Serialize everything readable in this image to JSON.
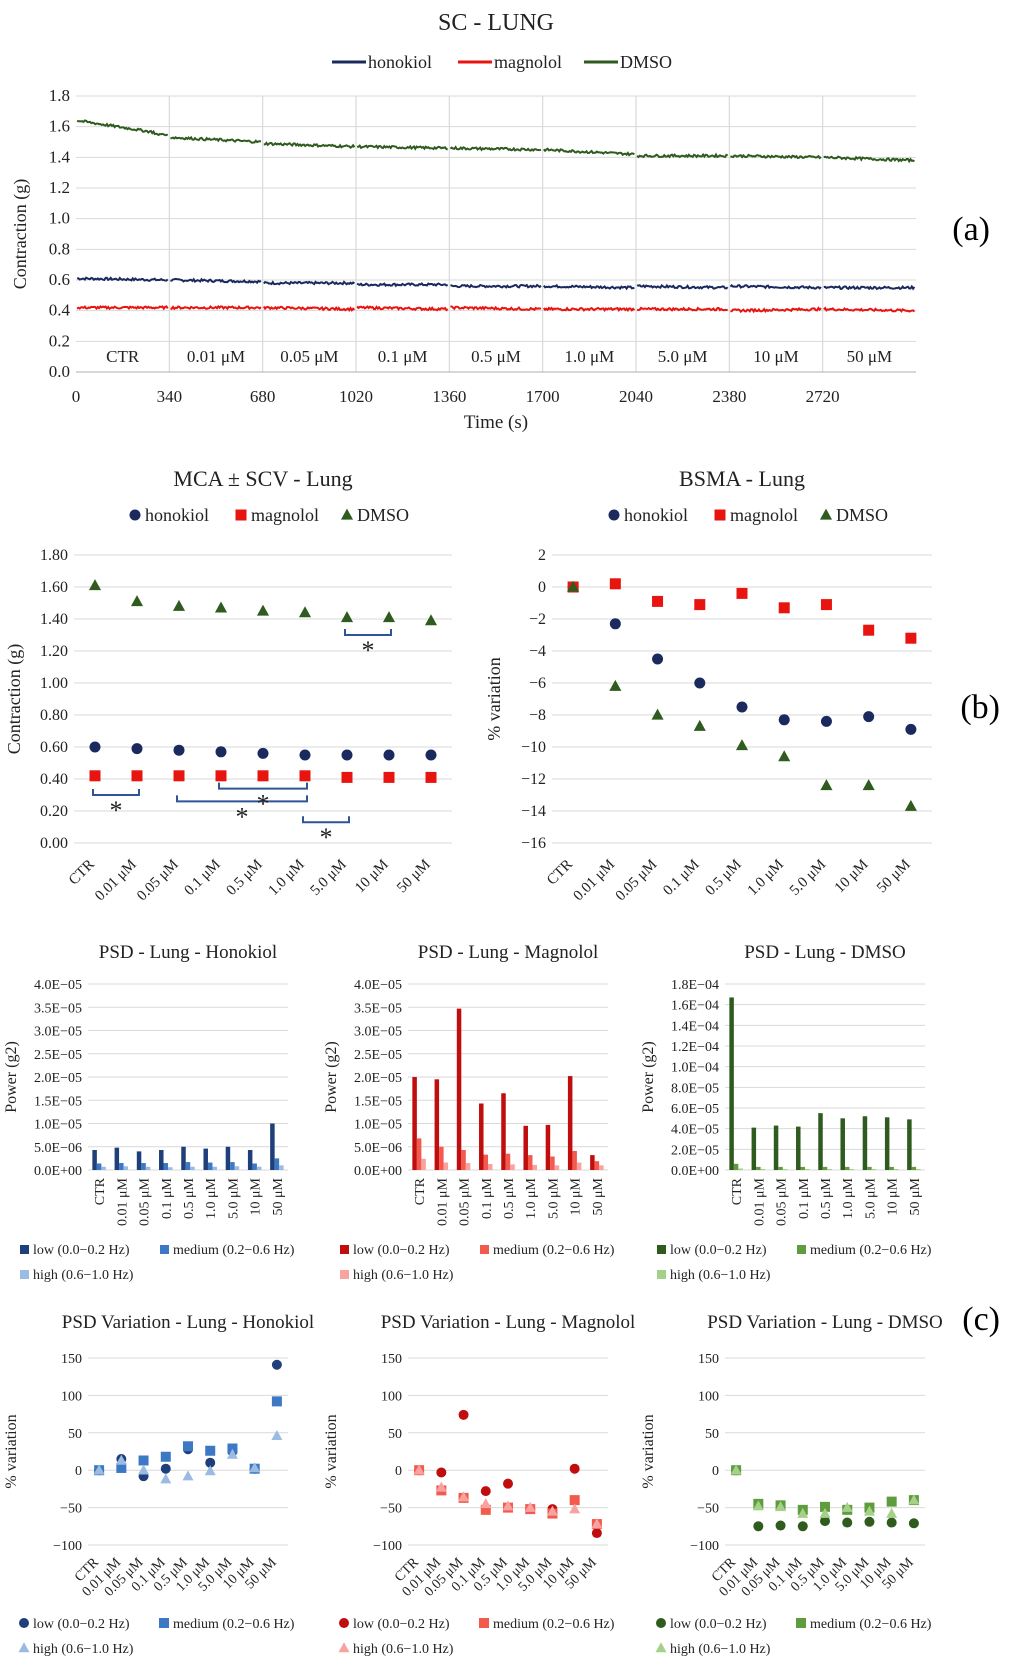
{
  "colors": {
    "honokiol": "#1b2a5e",
    "magnolol": "#e8140f",
    "dmso": "#2f5b1f",
    "hon_low": "#1f3f7a",
    "hon_med": "#3d78c4",
    "hon_high": "#9bbbe3",
    "mag_low": "#c00d0d",
    "mag_med": "#f25a4e",
    "mag_high": "#f8a3a0",
    "dmso_low": "#2f5b1f",
    "dmso_med": "#5f9c3e",
    "dmso_high": "#a5d08a"
  },
  "panel_labels": {
    "a": "(a)",
    "b": "(b)",
    "c": "(c)"
  },
  "chart_data": [
    {
      "id": "sc_lung",
      "type": "line",
      "title": "SC - LUNG",
      "xlabel": "Time (s)",
      "ylabel": "Contraction (g)",
      "xlim": [
        0,
        3060
      ],
      "ylim": [
        0,
        1.8
      ],
      "x_ticks": [
        "0",
        "340",
        "680",
        "1020",
        "1360",
        "1700",
        "2040",
        "2380",
        "2720"
      ],
      "y_ticks": [
        "0.0",
        "0.2",
        "0.4",
        "0.6",
        "0.8",
        "1.0",
        "1.2",
        "1.4",
        "1.6",
        "1.8"
      ],
      "segments": [
        "CTR",
        "0.01 μM",
        "0.05 μM",
        "0.1 μM",
        "0.5 μM",
        "1.0 μM",
        "5.0 μM",
        "10 μM",
        "50 μM"
      ],
      "segment_edges": [
        0,
        340,
        680,
        1020,
        1360,
        1700,
        2040,
        2380,
        2720,
        3060
      ],
      "legend": "top",
      "series": [
        {
          "name": "honokiol",
          "segment_levels": [
            [
              0.61,
              0.6
            ],
            [
              0.6,
              0.59
            ],
            [
              0.58,
              0.58
            ],
            [
              0.57,
              0.57
            ],
            [
              0.56,
              0.56
            ],
            [
              0.56,
              0.55
            ],
            [
              0.56,
              0.55
            ],
            [
              0.56,
              0.55
            ],
            [
              0.55,
              0.55
            ]
          ]
        },
        {
          "name": "magnolol",
          "segment_levels": [
            [
              0.42,
              0.42
            ],
            [
              0.42,
              0.42
            ],
            [
              0.42,
              0.41
            ],
            [
              0.42,
              0.41
            ],
            [
              0.42,
              0.41
            ],
            [
              0.41,
              0.41
            ],
            [
              0.41,
              0.41
            ],
            [
              0.4,
              0.41
            ],
            [
              0.41,
              0.4
            ]
          ]
        },
        {
          "name": "DMSO",
          "segment_levels": [
            [
              1.64,
              1.55
            ],
            [
              1.53,
              1.5
            ],
            [
              1.49,
              1.47
            ],
            [
              1.47,
              1.46
            ],
            [
              1.46,
              1.45
            ],
            [
              1.45,
              1.42
            ],
            [
              1.41,
              1.41
            ],
            [
              1.41,
              1.4
            ],
            [
              1.4,
              1.38
            ]
          ]
        }
      ]
    },
    {
      "id": "mca_scv",
      "type": "scatter",
      "title": "MCA ± SCV - Lung",
      "ylabel": "Contraction (g)",
      "categories": [
        "CTR",
        "0.01 μM",
        "0.05 μM",
        "0.1 μM",
        "0.5 μM",
        "1.0 μM",
        "5.0 μM",
        "10 μM",
        "50 μM"
      ],
      "ylim": [
        0,
        1.8
      ],
      "y_ticks": [
        "0.00",
        "0.20",
        "0.40",
        "0.60",
        "0.80",
        "1.00",
        "1.20",
        "1.40",
        "1.60",
        "1.80"
      ],
      "legend": "top",
      "series": [
        {
          "name": "honokiol",
          "values": [
            0.6,
            0.59,
            0.58,
            0.57,
            0.56,
            0.55,
            0.55,
            0.55,
            0.55
          ]
        },
        {
          "name": "magnolol",
          "values": [
            0.42,
            0.42,
            0.42,
            0.42,
            0.42,
            0.42,
            0.41,
            0.41,
            0.41
          ]
        },
        {
          "name": "DMSO",
          "values": [
            1.61,
            1.51,
            1.48,
            1.47,
            1.45,
            1.44,
            1.41,
            1.41,
            1.39
          ]
        }
      ],
      "annotations": [
        {
          "text": "*",
          "from": 0,
          "to": 1,
          "level": 0.3
        },
        {
          "text": "*",
          "from": 2,
          "to": 5,
          "level": 0.26
        },
        {
          "text": "*",
          "from": 3,
          "to": 5,
          "level": 0.34
        },
        {
          "text": "*",
          "from": 5,
          "to": 6,
          "level": 0.13
        },
        {
          "text": "*",
          "from": 6,
          "to": 7,
          "level": 1.3
        }
      ]
    },
    {
      "id": "bsma",
      "type": "scatter",
      "title": "BSMA - Lung",
      "ylabel": "% variation",
      "categories": [
        "CTR",
        "0.01 μM",
        "0.05 μM",
        "0.1 μM",
        "0.5 μM",
        "1.0 μM",
        "5.0 μM",
        "10 μM",
        "50 μM"
      ],
      "ylim": [
        -16,
        2
      ],
      "y_ticks": [
        "−16",
        "−14",
        "−12",
        "−10",
        "−8",
        "−6",
        "−4",
        "−2",
        "0",
        "2"
      ],
      "legend": "top",
      "series": [
        {
          "name": "honokiol",
          "values": [
            0,
            -2.3,
            -4.5,
            -6.0,
            -7.5,
            -8.3,
            -8.4,
            -8.1,
            -8.9
          ]
        },
        {
          "name": "magnolol",
          "values": [
            0,
            0.2,
            -0.9,
            -1.1,
            -0.4,
            -1.3,
            -1.1,
            -2.7,
            -3.2
          ]
        },
        {
          "name": "DMSO",
          "values": [
            0,
            -6.2,
            -8.0,
            -8.7,
            -9.9,
            -10.6,
            -12.4,
            -12.4,
            -13.7
          ]
        }
      ]
    },
    {
      "id": "psd_hon",
      "type": "bar",
      "title": "PSD - Lung - Honokiol",
      "ylabel": "Power (g2)",
      "categories": [
        "CTR",
        "0.01 μM",
        "0.05 μM",
        "0.1 μM",
        "0.5 μM",
        "1.0 μM",
        "5.0 μM",
        "10 μM",
        "50 μM"
      ],
      "ylim": [
        0,
        4e-05
      ],
      "y_ticks": [
        "0.0E+00",
        "5.0E−06",
        "1.0E−05",
        "1.5E−05",
        "2.0E−05",
        "2.5E−05",
        "3.0E−05",
        "3.5E−05",
        "4.0E−05"
      ],
      "legend": "bottom",
      "series": [
        {
          "name": "low (0.0−0.2 Hz)",
          "values": [
            4.3e-06,
            4.8e-06,
            4e-06,
            4.3e-06,
            5e-06,
            4.6e-06,
            5e-06,
            4.3e-06,
            1e-05
          ]
        },
        {
          "name": "medium (0.2−0.6 Hz)",
          "values": [
            1.4e-06,
            1.5e-06,
            1.5e-06,
            1.5e-06,
            1.7e-06,
            1.6e-06,
            1.7e-06,
            1.4e-06,
            2.5e-06
          ]
        },
        {
          "name": "high (0.6−1.0 Hz)",
          "values": [
            7e-07,
            8e-07,
            7e-07,
            6e-07,
            7e-07,
            7e-07,
            8e-07,
            7e-07,
            1e-06
          ]
        }
      ]
    },
    {
      "id": "psd_mag",
      "type": "bar",
      "title": "PSD - Lung - Magnolol",
      "ylabel": "Power (g2)",
      "categories": [
        "CTR",
        "0.01 μM",
        "0.05 μM",
        "0.1 μM",
        "0.5 μM",
        "1.0 μM",
        "5.0 μM",
        "10 μM",
        "50 μM"
      ],
      "ylim": [
        0,
        4e-05
      ],
      "y_ticks": [
        "0.0E+00",
        "5.0E−06",
        "1.0E−05",
        "1.5E−05",
        "2.0E−05",
        "2.5E−05",
        "3.0E−05",
        "3.5E−05",
        "4.0E−05"
      ],
      "legend": "bottom",
      "series": [
        {
          "name": "low (0.0−0.2 Hz)",
          "values": [
            2e-05,
            1.95e-05,
            3.47e-05,
            1.43e-05,
            1.65e-05,
            9.5e-06,
            9.7e-06,
            2.02e-05,
            3.2e-06
          ]
        },
        {
          "name": "medium (0.2−0.6 Hz)",
          "values": [
            6.8e-06,
            5e-06,
            4.3e-06,
            3.3e-06,
            3.5e-06,
            3.2e-06,
            2.9e-06,
            4.1e-06,
            1.9e-06
          ]
        },
        {
          "name": "high (0.6−1.0 Hz)",
          "values": [
            2.4e-06,
            1.6e-06,
            1.5e-06,
            1.3e-06,
            1.2e-06,
            1.1e-06,
            1e-06,
            1.6e-06,
            1e-06
          ]
        }
      ]
    },
    {
      "id": "psd_dmso",
      "type": "bar",
      "title": "PSD - Lung - DMSO",
      "ylabel": "Power (g2)",
      "categories": [
        "CTR",
        "0.01 μM",
        "0.05 μM",
        "0.1 μM",
        "0.5 μM",
        "1.0 μM",
        "5.0 μM",
        "10 μM",
        "50 μM"
      ],
      "ylim": [
        0,
        0.00018
      ],
      "y_ticks": [
        "0.0E+00",
        "2.0E−05",
        "4.0E−05",
        "6.0E−05",
        "8.0E−05",
        "1.0E−04",
        "1.2E−04",
        "1.4E−04",
        "1.6E−04",
        "1.8E−04"
      ],
      "legend": "bottom",
      "series": [
        {
          "name": "low (0.0−0.2 Hz)",
          "values": [
            0.000167,
            4.1e-05,
            4.3e-05,
            4.2e-05,
            5.5e-05,
            5e-05,
            5.2e-05,
            5.1e-05,
            4.9e-05
          ]
        },
        {
          "name": "medium (0.2−0.6 Hz)",
          "values": [
            6e-06,
            3e-06,
            3e-06,
            3e-06,
            3e-06,
            3e-06,
            3e-06,
            3e-06,
            3e-06
          ]
        },
        {
          "name": "high (0.6−1.0 Hz)",
          "values": [
            1.5e-06,
            1e-06,
            1e-06,
            1e-06,
            1e-06,
            1e-06,
            1e-06,
            1e-06,
            1e-06
          ]
        }
      ]
    },
    {
      "id": "psdv_hon",
      "type": "scatter",
      "title": "PSD Variation - Lung - Honokiol",
      "ylabel": "% variation",
      "categories": [
        "CTR",
        "0.01 μM",
        "0.05 μM",
        "0.1 μM",
        "0.5 μM",
        "1.0 μM",
        "5.0 μM",
        "10 μM",
        "50 μM"
      ],
      "ylim": [
        -100,
        150
      ],
      "y_ticks": [
        "−100",
        "−50",
        "0",
        "50",
        "100",
        "150"
      ],
      "legend": "bottom",
      "series": [
        {
          "name": "low (0.0−0.2 Hz)",
          "values": [
            0,
            15,
            -8,
            2,
            28,
            10,
            25,
            2,
            141
          ]
        },
        {
          "name": "medium (0.2−0.6 Hz)",
          "values": [
            0,
            3,
            13,
            18,
            32,
            26,
            29,
            2,
            92
          ]
        },
        {
          "name": "high (0.6−1.0 Hz)",
          "values": [
            0,
            13,
            0,
            -12,
            -8,
            -1,
            21,
            3,
            46
          ]
        }
      ]
    },
    {
      "id": "psdv_mag",
      "type": "scatter",
      "title": "PSD Variation - Lung - Magnolol",
      "ylabel": "% variation",
      "categories": [
        "CTR",
        "0.01 μM",
        "0.05 μM",
        "0.1 μM",
        "0.5 μM",
        "1.0 μM",
        "5.0 μM",
        "10 μM",
        "50 μM"
      ],
      "ylim": [
        -100,
        150
      ],
      "y_ticks": [
        "−100",
        "−50",
        "0",
        "50",
        "100",
        "150"
      ],
      "legend": "bottom",
      "series": [
        {
          "name": "low (0.0−0.2 Hz)",
          "values": [
            0,
            -3,
            74,
            -28,
            -18,
            -52,
            -52,
            2,
            -84
          ]
        },
        {
          "name": "medium (0.2−0.6 Hz)",
          "values": [
            0,
            -27,
            -37,
            -53,
            -50,
            -52,
            -58,
            -40,
            -72
          ]
        },
        {
          "name": "high (0.6−1.0 Hz)",
          "values": [
            0,
            -23,
            -36,
            -45,
            -48,
            -50,
            -55,
            -52,
            -72
          ]
        }
      ]
    },
    {
      "id": "psdv_dmso",
      "type": "scatter",
      "title": "PSD Variation - Lung - DMSO",
      "ylabel": "% variation",
      "categories": [
        "CTR",
        "0.01 μM",
        "0.05 μM",
        "0.1 μM",
        "0.5 μM",
        "1.0 μM",
        "5.0 μM",
        "10 μM",
        "50 μM"
      ],
      "ylim": [
        -100,
        150
      ],
      "y_ticks": [
        "−100",
        "−50",
        "0",
        "50",
        "100",
        "150"
      ],
      "legend": "bottom",
      "series": [
        {
          "name": "low (0.0−0.2 Hz)",
          "values": [
            0,
            -75,
            -74,
            -75,
            -68,
            -70,
            -69,
            -70,
            -71
          ]
        },
        {
          "name": "medium (0.2−0.6 Hz)",
          "values": [
            0,
            -45,
            -47,
            -53,
            -49,
            -53,
            -50,
            -42,
            -40
          ]
        },
        {
          "name": "high (0.6−1.0 Hz)",
          "values": [
            0,
            -48,
            -49,
            -58,
            -58,
            -50,
            -55,
            -58,
            -40
          ]
        }
      ]
    }
  ]
}
